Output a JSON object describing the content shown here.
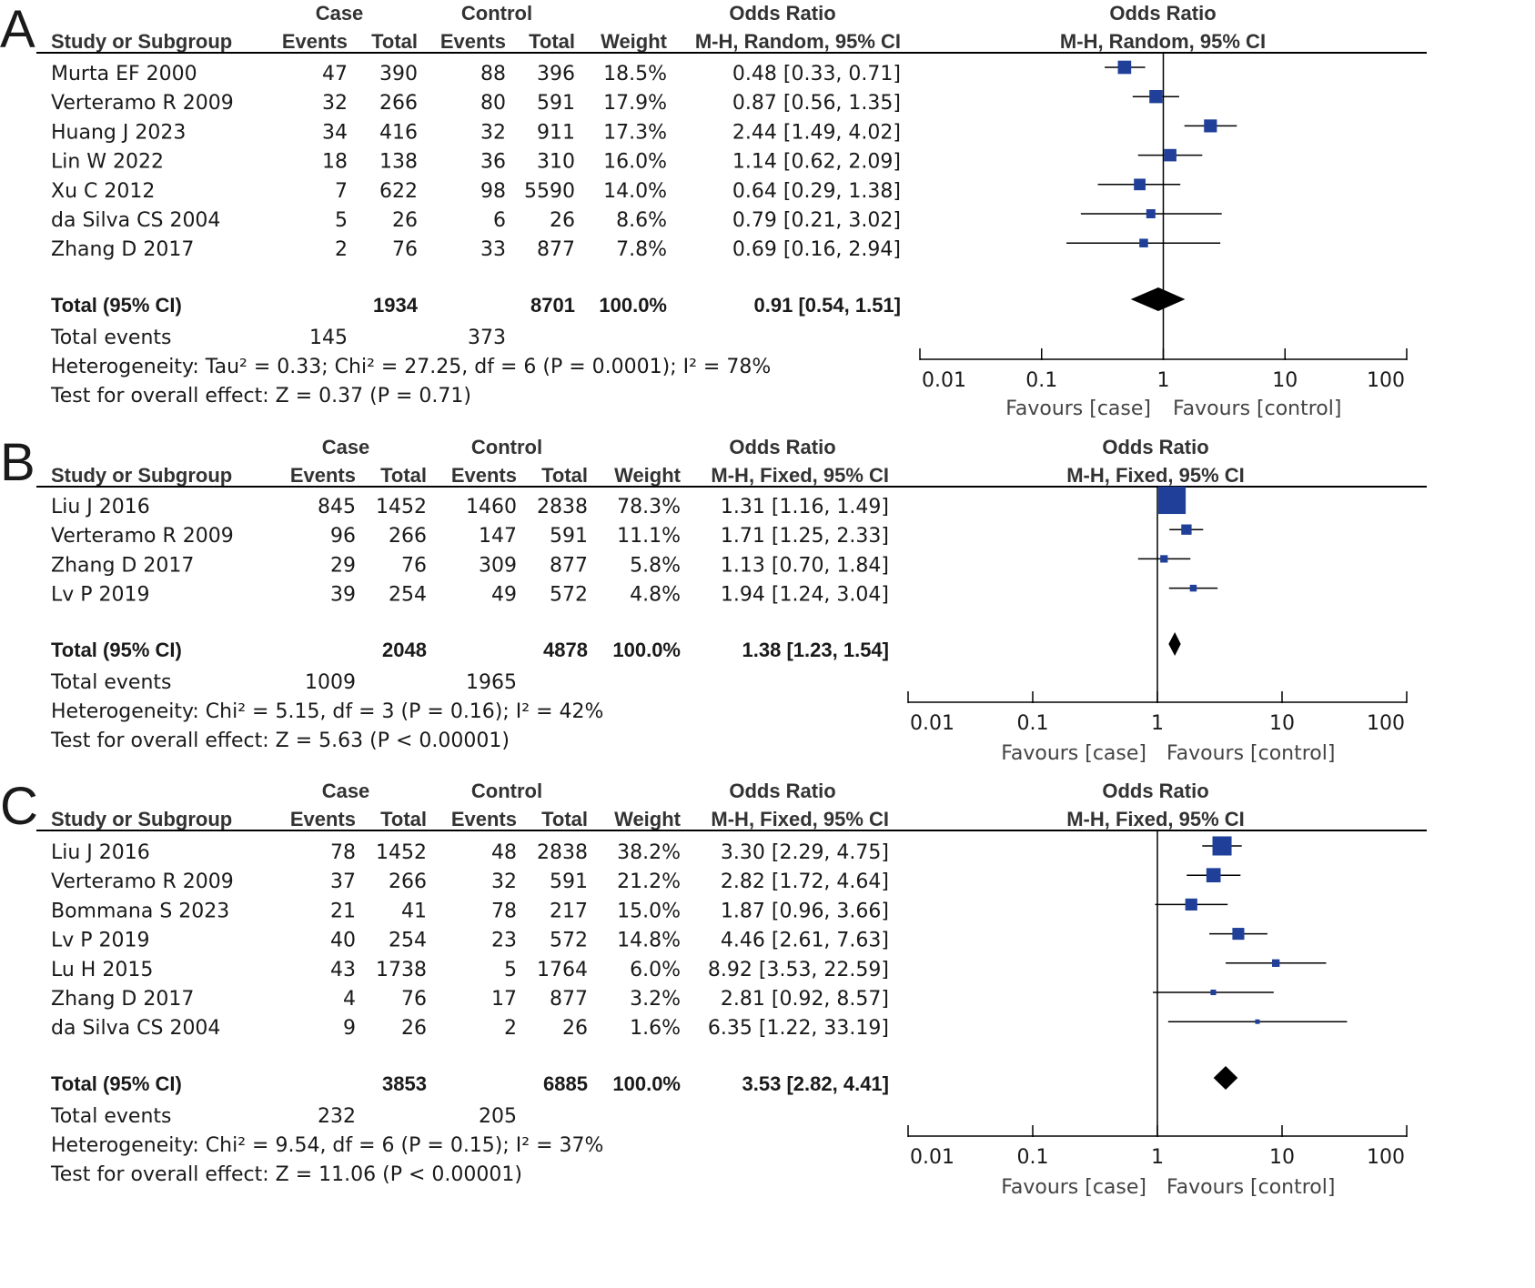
{
  "colors": {
    "marker": "#1f3f99",
    "line": "#000000",
    "diamond": "#000000",
    "text": "#1a1a1a"
  },
  "chart_data": [
    {
      "type": "forest",
      "panel_label": "A",
      "headers": {
        "group1": "Case",
        "group2": "Control",
        "or_group": "Odds Ratio",
        "plot_group": "Odds Ratio",
        "study": "Study or Subgroup",
        "events": "Events",
        "total": "Total",
        "weight": "Weight",
        "method": "M-H, Random, 95% CI",
        "plot_method": "M-H, Random, 95% CI"
      },
      "studies": [
        {
          "name": "Murta EF 2000",
          "e1": "47",
          "t1": "390",
          "e2": "88",
          "t2": "396",
          "weight": "18.5%",
          "ci": "0.48 [0.33, 0.71]",
          "or": 0.48,
          "lo": 0.33,
          "hi": 0.71,
          "w": 18.5
        },
        {
          "name": "Verteramo R 2009",
          "e1": "32",
          "t1": "266",
          "e2": "80",
          "t2": "591",
          "weight": "17.9%",
          "ci": "0.87 [0.56, 1.35]",
          "or": 0.87,
          "lo": 0.56,
          "hi": 1.35,
          "w": 17.9
        },
        {
          "name": "Huang J 2023",
          "e1": "34",
          "t1": "416",
          "e2": "32",
          "t2": "911",
          "weight": "17.3%",
          "ci": "2.44 [1.49, 4.02]",
          "or": 2.44,
          "lo": 1.49,
          "hi": 4.02,
          "w": 17.3
        },
        {
          "name": "Lin W 2022",
          "e1": "18",
          "t1": "138",
          "e2": "36",
          "t2": "310",
          "weight": "16.0%",
          "ci": "1.14 [0.62, 2.09]",
          "or": 1.14,
          "lo": 0.62,
          "hi": 2.09,
          "w": 16.0
        },
        {
          "name": "Xu C 2012",
          "e1": "7",
          "t1": "622",
          "e2": "98",
          "t2": "5590",
          "weight": "14.0%",
          "ci": "0.64 [0.29, 1.38]",
          "or": 0.64,
          "lo": 0.29,
          "hi": 1.38,
          "w": 14.0
        },
        {
          "name": "da Silva CS 2004",
          "e1": "5",
          "t1": "26",
          "e2": "6",
          "t2": "26",
          "weight": "8.6%",
          "ci": "0.79 [0.21, 3.02]",
          "or": 0.79,
          "lo": 0.21,
          "hi": 3.02,
          "w": 8.6
        },
        {
          "name": "Zhang D 2017",
          "e1": "2",
          "t1": "76",
          "e2": "33",
          "t2": "877",
          "weight": "7.8%",
          "ci": "0.69 [0.16, 2.94]",
          "or": 0.69,
          "lo": 0.16,
          "hi": 2.94,
          "w": 7.8
        }
      ],
      "total": {
        "label": "Total (95% CI)",
        "t1": "1934",
        "t2": "8701",
        "weight": "100.0%",
        "ci": "0.91 [0.54, 1.51]",
        "or": 0.91,
        "lo": 0.54,
        "hi": 1.51
      },
      "total_events": {
        "label": "Total events",
        "e1": "145",
        "e2": "373"
      },
      "heterogeneity": "Heterogeneity: Tau² = 0.33; Chi² = 27.25, df = 6 (P = 0.0001); I² = 78%",
      "overall_effect": "Test for overall effect: Z = 0.37 (P = 0.71)",
      "xaxis": {
        "scale": "log",
        "ticks": [
          0.01,
          0.1,
          1,
          10,
          100
        ],
        "tick_labels": [
          "0.01",
          "0.1",
          "1",
          "10",
          "100"
        ],
        "xlim": [
          0.01,
          100
        ]
      },
      "favours_left": "Favours [case]",
      "favours_right": "Favours [control]"
    },
    {
      "type": "forest",
      "panel_label": "B",
      "headers": {
        "group1": "Case",
        "group2": "Control",
        "or_group": "Odds Ratio",
        "plot_group": "Odds Ratio",
        "study": "Study or Subgroup",
        "events": "Events",
        "total": "Total",
        "weight": "Weight",
        "method": "M-H, Fixed, 95% CI",
        "plot_method": "M-H, Fixed, 95% CI"
      },
      "studies": [
        {
          "name": "Liu J 2016",
          "e1": "845",
          "t1": "1452",
          "e2": "1460",
          "t2": "2838",
          "weight": "78.3%",
          "ci": "1.31 [1.16, 1.49]",
          "or": 1.31,
          "lo": 1.16,
          "hi": 1.49,
          "w": 78.3
        },
        {
          "name": "Verteramo R 2009",
          "e1": "96",
          "t1": "266",
          "e2": "147",
          "t2": "591",
          "weight": "11.1%",
          "ci": "1.71 [1.25, 2.33]",
          "or": 1.71,
          "lo": 1.25,
          "hi": 2.33,
          "w": 11.1
        },
        {
          "name": "Zhang D 2017",
          "e1": "29",
          "t1": "76",
          "e2": "309",
          "t2": "877",
          "weight": "5.8%",
          "ci": "1.13 [0.70, 1.84]",
          "or": 1.13,
          "lo": 0.7,
          "hi": 1.84,
          "w": 5.8
        },
        {
          "name": "Lv P 2019",
          "e1": "39",
          "t1": "254",
          "e2": "49",
          "t2": "572",
          "weight": "4.8%",
          "ci": "1.94 [1.24, 3.04]",
          "or": 1.94,
          "lo": 1.24,
          "hi": 3.04,
          "w": 4.8
        }
      ],
      "total": {
        "label": "Total (95% CI)",
        "t1": "2048",
        "t2": "4878",
        "weight": "100.0%",
        "ci": "1.38 [1.23, 1.54]",
        "or": 1.38,
        "lo": 1.23,
        "hi": 1.54
      },
      "total_events": {
        "label": "Total events",
        "e1": "1009",
        "e2": "1965"
      },
      "heterogeneity": "Heterogeneity: Chi² = 5.15, df = 3 (P = 0.16); I² = 42%",
      "overall_effect": "Test for overall effect: Z = 5.63 (P < 0.00001)",
      "xaxis": {
        "scale": "log",
        "ticks": [
          0.01,
          0.1,
          1,
          10,
          100
        ],
        "tick_labels": [
          "0.01",
          "0.1",
          "1",
          "10",
          "100"
        ],
        "xlim": [
          0.01,
          100
        ]
      },
      "favours_left": "Favours [case]",
      "favours_right": "Favours [control]"
    },
    {
      "type": "forest",
      "panel_label": "C",
      "headers": {
        "group1": "Case",
        "group2": "Control",
        "or_group": "Odds Ratio",
        "plot_group": "Odds Ratio",
        "study": "Study or Subgroup",
        "events": "Events",
        "total": "Total",
        "weight": "Weight",
        "method": "M-H, Fixed, 95% CI",
        "plot_method": "M-H, Fixed, 95% CI"
      },
      "studies": [
        {
          "name": "Liu J 2016",
          "e1": "78",
          "t1": "1452",
          "e2": "48",
          "t2": "2838",
          "weight": "38.2%",
          "ci": "3.30 [2.29, 4.75]",
          "or": 3.3,
          "lo": 2.29,
          "hi": 4.75,
          "w": 38.2
        },
        {
          "name": "Verteramo R 2009",
          "e1": "37",
          "t1": "266",
          "e2": "32",
          "t2": "591",
          "weight": "21.2%",
          "ci": "2.82 [1.72, 4.64]",
          "or": 2.82,
          "lo": 1.72,
          "hi": 4.64,
          "w": 21.2
        },
        {
          "name": "Bommana S 2023",
          "e1": "21",
          "t1": "41",
          "e2": "78",
          "t2": "217",
          "weight": "15.0%",
          "ci": "1.87 [0.96, 3.66]",
          "or": 1.87,
          "lo": 0.96,
          "hi": 3.66,
          "w": 15.0
        },
        {
          "name": "Lv P 2019",
          "e1": "40",
          "t1": "254",
          "e2": "23",
          "t2": "572",
          "weight": "14.8%",
          "ci": "4.46 [2.61, 7.63]",
          "or": 4.46,
          "lo": 2.61,
          "hi": 7.63,
          "w": 14.8
        },
        {
          "name": "Lu H 2015",
          "e1": "43",
          "t1": "1738",
          "e2": "5",
          "t2": "1764",
          "weight": "6.0%",
          "ci": "8.92 [3.53, 22.59]",
          "or": 8.92,
          "lo": 3.53,
          "hi": 22.59,
          "w": 6.0
        },
        {
          "name": "Zhang D 2017",
          "e1": "4",
          "t1": "76",
          "e2": "17",
          "t2": "877",
          "weight": "3.2%",
          "ci": "2.81 [0.92, 8.57]",
          "or": 2.81,
          "lo": 0.92,
          "hi": 8.57,
          "w": 3.2
        },
        {
          "name": "da Silva CS 2004",
          "e1": "9",
          "t1": "26",
          "e2": "2",
          "t2": "26",
          "weight": "1.6%",
          "ci": "6.35 [1.22, 33.19]",
          "or": 6.35,
          "lo": 1.22,
          "hi": 33.19,
          "w": 1.6
        }
      ],
      "total": {
        "label": "Total (95% CI)",
        "t1": "3853",
        "t2": "6885",
        "weight": "100.0%",
        "ci": "3.53 [2.82, 4.41]",
        "or": 3.53,
        "lo": 2.82,
        "hi": 4.41
      },
      "total_events": {
        "label": "Total events",
        "e1": "232",
        "e2": "205"
      },
      "heterogeneity": "Heterogeneity: Chi² = 9.54, df = 6 (P = 0.15); I² = 37%",
      "overall_effect": "Test for overall effect: Z = 11.06 (P < 0.00001)",
      "xaxis": {
        "scale": "log",
        "ticks": [
          0.01,
          0.1,
          1,
          10,
          100
        ],
        "tick_labels": [
          "0.01",
          "0.1",
          "1",
          "10",
          "100"
        ],
        "xlim": [
          0.01,
          100
        ]
      },
      "favours_left": "Favours [case]",
      "favours_right": "Favours [control]"
    }
  ]
}
